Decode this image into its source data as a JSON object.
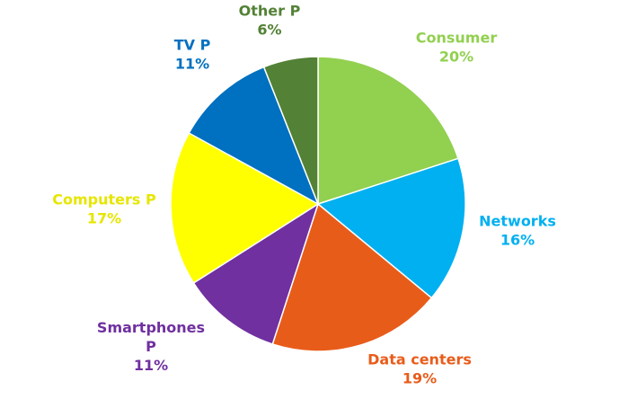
{
  "chart_data": {
    "type": "pie",
    "start_angle_deg": 0,
    "direction": "clockwise",
    "slices": [
      {
        "label_lines": [
          "Consumer"
        ],
        "value": 20,
        "value_text": "20%",
        "color": "#92d050"
      },
      {
        "label_lines": [
          "Networks"
        ],
        "value": 16,
        "value_text": "16%",
        "color": "#00b0f0"
      },
      {
        "label_lines": [
          "Data centers"
        ],
        "value": 19,
        "value_text": "19%",
        "color": "#e85c1a"
      },
      {
        "label_lines": [
          "Smartphones",
          "P"
        ],
        "value": 11,
        "value_text": "11%",
        "color": "#7030a0"
      },
      {
        "label_lines": [
          "Computers P"
        ],
        "value": 17,
        "value_text": "17%",
        "color": "#ffff00"
      },
      {
        "label_lines": [
          "TV P"
        ],
        "value": 11,
        "value_text": "11%",
        "color": "#0070c0"
      },
      {
        "label_lines": [
          "Other P"
        ],
        "value": 6,
        "value_text": "6%",
        "color": "#538135"
      }
    ],
    "label_colors": [
      "#92d050",
      "#00b0f0",
      "#e85c1a",
      "#7030a0",
      "#e6e600",
      "#0070c0",
      "#538135"
    ]
  }
}
